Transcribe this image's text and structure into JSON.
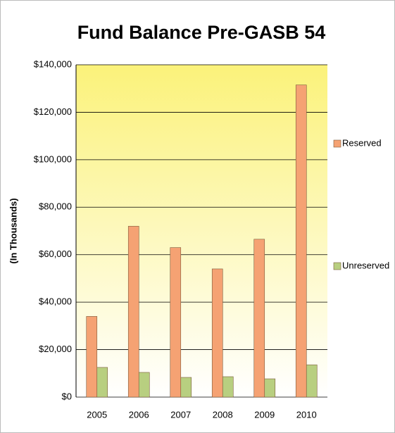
{
  "chart_data": {
    "type": "bar",
    "title": "Fund Balance Pre-GASB 54",
    "y_label": "(In Thousands)",
    "categories": [
      "2005",
      "2006",
      "2007",
      "2008",
      "2009",
      "2010"
    ],
    "series": [
      {
        "name": "Reserved",
        "color": "#f5a273",
        "values": [
          34000,
          72000,
          63000,
          54000,
          66500,
          131500
        ]
      },
      {
        "name": "Unreserved",
        "color": "#b8cf80",
        "values": [
          12500,
          10400,
          8300,
          8600,
          7700,
          13600
        ]
      }
    ],
    "ylim": [
      0,
      140000
    ],
    "yticks": [
      {
        "value": 0,
        "label": "$0"
      },
      {
        "value": 20000,
        "label": "$20,000"
      },
      {
        "value": 40000,
        "label": "$40,000"
      },
      {
        "value": 60000,
        "label": "$60,000"
      },
      {
        "value": 80000,
        "label": "$80,000"
      },
      {
        "value": 100000,
        "label": "$100,000"
      },
      {
        "value": 120000,
        "label": "$120,000"
      },
      {
        "value": 140000,
        "label": "$140,000"
      }
    ],
    "grid": true,
    "legend": "right"
  }
}
